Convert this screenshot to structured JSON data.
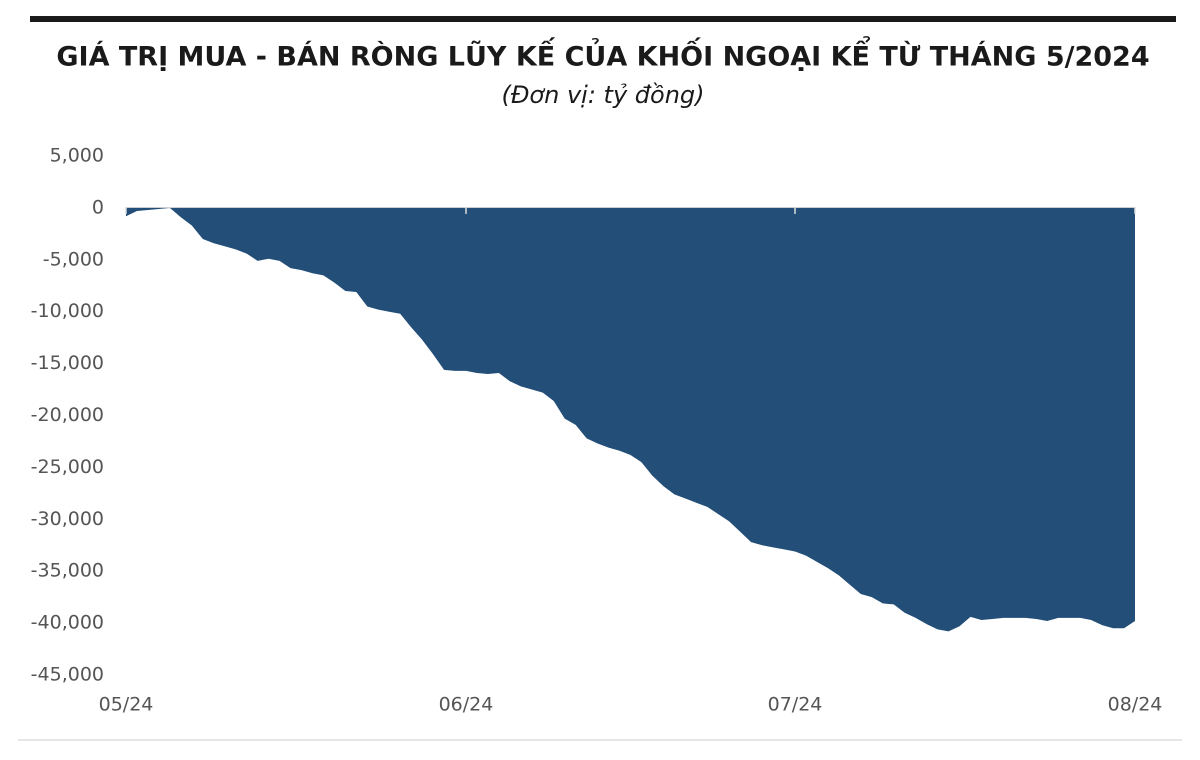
{
  "chart_data": {
    "type": "area",
    "title": "GIÁ TRỊ MUA - BÁN RÒNG LŨY KẾ CỦA KHỐI NGOẠI KỂ TỪ THÁNG 5/2024",
    "subtitle": "(Đơn vị: tỷ đồng)",
    "categories": [
      "05/24",
      null,
      null,
      null,
      null,
      null,
      null,
      null,
      null,
      null,
      null,
      null,
      null,
      null,
      null,
      null,
      null,
      null,
      null,
      null,
      null,
      null,
      null,
      null,
      null,
      null,
      null,
      null,
      null,
      null,
      null,
      "06/24",
      null,
      null,
      null,
      null,
      null,
      null,
      null,
      null,
      null,
      null,
      null,
      null,
      null,
      null,
      null,
      null,
      null,
      null,
      null,
      null,
      null,
      null,
      null,
      null,
      null,
      null,
      null,
      null,
      null,
      "07/24",
      null,
      null,
      null,
      null,
      null,
      null,
      null,
      null,
      null,
      null,
      null,
      null,
      null,
      null,
      null,
      null,
      null,
      null,
      null,
      null,
      null,
      null,
      null,
      null,
      null,
      null,
      null,
      null,
      null,
      null,
      "08/24"
    ],
    "values": [
      -800,
      -300,
      -200,
      -100,
      0,
      -900,
      -1700,
      -3000,
      -3400,
      -3700,
      -4000,
      -4400,
      -5100,
      -4900,
      -5100,
      -5800,
      -6000,
      -6300,
      -6500,
      -7200,
      -8000,
      -8100,
      -9500,
      -9800,
      -10000,
      -10200,
      -11500,
      -12700,
      -14100,
      -15600,
      -15700,
      -15700,
      -15900,
      -16000,
      -15900,
      -16700,
      -17200,
      -17500,
      -17800,
      -18600,
      -20300,
      -20900,
      -22200,
      -22700,
      -23100,
      -23400,
      -23800,
      -24500,
      -25800,
      -26800,
      -27600,
      -28000,
      -28400,
      -28800,
      -29500,
      -30200,
      -31200,
      -32200,
      -32500,
      -32700,
      -32900,
      -33100,
      -33500,
      -34100,
      -34700,
      -35400,
      -36300,
      -37200,
      -37500,
      -38100,
      -38200,
      -39000,
      -39500,
      -40100,
      -40600,
      -40800,
      -40300,
      -39400,
      -39700,
      -39600,
      -39500,
      -39500,
      -39500,
      -39600,
      -39800,
      -39500,
      -39500,
      -39500,
      -39700,
      -40200,
      -40500,
      -40500,
      -39800
    ],
    "color": "#224e78",
    "ylim": [
      -45000,
      5000
    ],
    "yticks": [
      {
        "value": 5000,
        "label": "5,000"
      },
      0,
      {
        "value": -5000,
        "label": "-5,000"
      },
      {
        "value": -10000,
        "label": "-10,000"
      },
      {
        "value": -15000,
        "label": "-15,000"
      },
      {
        "value": -20000,
        "label": "-20,000"
      },
      {
        "value": -25000,
        "label": "-25,000"
      },
      {
        "value": -30000,
        "label": "-30,000"
      },
      {
        "value": -35000,
        "label": "-35,000"
      },
      {
        "value": -40000,
        "label": "-40,000"
      },
      {
        "value": -45000,
        "label": "-45,000"
      }
    ],
    "grid": false
  }
}
